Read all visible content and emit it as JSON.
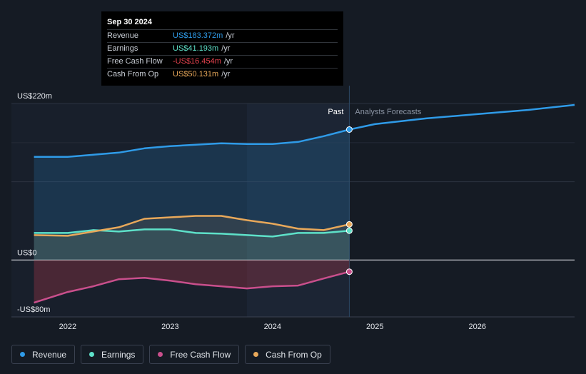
{
  "tooltip": {
    "date": "Sep 30 2024",
    "rows": [
      {
        "label": "Revenue",
        "value": "US$183.372m",
        "unit": "/yr",
        "color": "#2f9be8"
      },
      {
        "label": "Earnings",
        "value": "US$41.193m",
        "unit": "/yr",
        "color": "#5ee1c9"
      },
      {
        "label": "Free Cash Flow",
        "value": "-US$16.454m",
        "unit": "/yr",
        "color": "#e8434f"
      },
      {
        "label": "Cash From Op",
        "value": "US$50.131m",
        "unit": "/yr",
        "color": "#e8a85a"
      }
    ]
  },
  "labels": {
    "past": "Past",
    "forecast": "Analysts Forecasts"
  },
  "legend": [
    {
      "label": "Revenue",
      "color": "#2f9be8"
    },
    {
      "label": "Earnings",
      "color": "#5ee1c9"
    },
    {
      "label": "Free Cash Flow",
      "color": "#c94f8c"
    },
    {
      "label": "Cash From Op",
      "color": "#e8a85a"
    }
  ],
  "chart_data": {
    "type": "line",
    "ylim": [
      -80,
      220
    ],
    "xlim": [
      2021.45,
      2026.95
    ],
    "y_tick_labels": [
      {
        "value": 220,
        "label": "US$220m"
      },
      {
        "value": 0,
        "label": "US$0"
      },
      {
        "value": -80,
        "label": "-US$80m"
      }
    ],
    "x_ticks": [
      2022,
      2023,
      2024,
      2025,
      2026
    ],
    "x_tick_labels": [
      "2022",
      "2023",
      "2024",
      "2025",
      "2026"
    ],
    "past_end": 2024.75,
    "grid": true,
    "series": [
      {
        "name": "Revenue",
        "color": "#2f9be8",
        "x": [
          2021.67,
          2022.0,
          2022.25,
          2022.5,
          2022.75,
          2023.0,
          2023.25,
          2023.5,
          2023.75,
          2024.0,
          2024.25,
          2024.5,
          2024.75
        ],
        "y": [
          145,
          145,
          148,
          151,
          157,
          160,
          162,
          164,
          163,
          163,
          166,
          174,
          183.4
        ],
        "forecast_x": [
          2024.75,
          2025.0,
          2025.5,
          2026.0,
          2026.5,
          2026.95
        ],
        "forecast_y": [
          183.4,
          191,
          199,
          205,
          211,
          218
        ]
      },
      {
        "name": "Earnings",
        "color": "#5ee1c9",
        "x": [
          2021.67,
          2022.0,
          2022.25,
          2022.5,
          2022.75,
          2023.0,
          2023.25,
          2023.5,
          2023.75,
          2024.0,
          2024.25,
          2024.5,
          2024.75
        ],
        "y": [
          38,
          38,
          42,
          40,
          43,
          43,
          38,
          37,
          35,
          33,
          38,
          38,
          41.2
        ]
      },
      {
        "name": "Free Cash Flow",
        "color": "#c94f8c",
        "x": [
          2021.67,
          2022.0,
          2022.25,
          2022.5,
          2022.75,
          2023.0,
          2023.25,
          2023.5,
          2023.75,
          2024.0,
          2024.25,
          2024.5,
          2024.75
        ],
        "y": [
          -60,
          -45,
          -37,
          -27,
          -25,
          -29,
          -34,
          -37,
          -40,
          -37,
          -36,
          -26,
          -16.5
        ]
      },
      {
        "name": "Cash From Op",
        "color": "#e8a85a",
        "x": [
          2021.67,
          2022.0,
          2022.25,
          2022.5,
          2022.75,
          2023.0,
          2023.25,
          2023.5,
          2023.75,
          2024.0,
          2024.25,
          2024.5,
          2024.75
        ],
        "y": [
          35,
          34,
          40,
          46,
          58,
          60,
          62,
          62,
          56,
          51,
          44,
          42,
          50.1
        ]
      }
    ]
  }
}
